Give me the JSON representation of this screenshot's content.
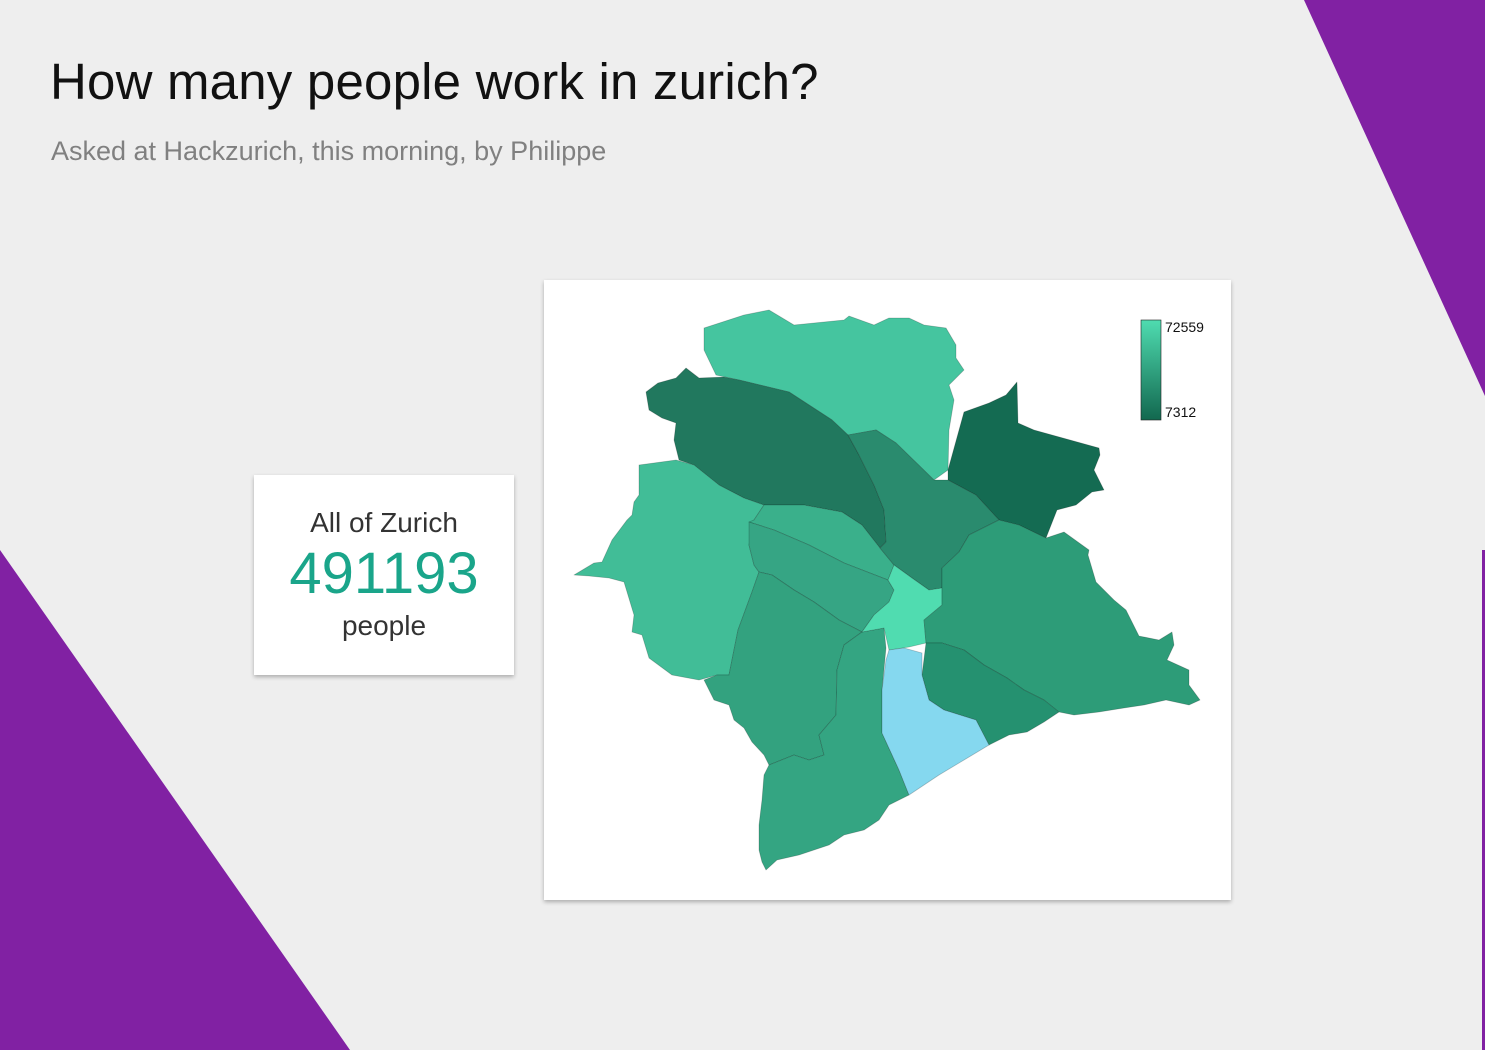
{
  "header": {
    "title": "How many people work in zurich?",
    "subtitle": "Asked at Hackzurich, this morning, by Philippe"
  },
  "summary": {
    "label": "All of Zurich",
    "value": "491193",
    "unit": "people"
  },
  "map": {
    "legend": {
      "max_label": "72559",
      "min_label": "7312",
      "max_color": "#4fdcb0",
      "min_color": "#12684f"
    },
    "district_colors": {
      "north": "#45c59f",
      "northwest": "#21785e",
      "northeast": "#146b52",
      "west": "#41bd97",
      "center_north": "#3ab08b",
      "center": "#2a8b6e",
      "center_west": "#36a584",
      "southwest": "#33a27f",
      "east": "#2d9c78",
      "southeast": "#259170",
      "south": "#34a582",
      "old_town": "#50dcb0",
      "lake": "#85d8ef"
    }
  },
  "colors": {
    "accent_purple": "#8121a3",
    "page_background": "#eeeeee",
    "highlight_number": "#1aa58a"
  }
}
